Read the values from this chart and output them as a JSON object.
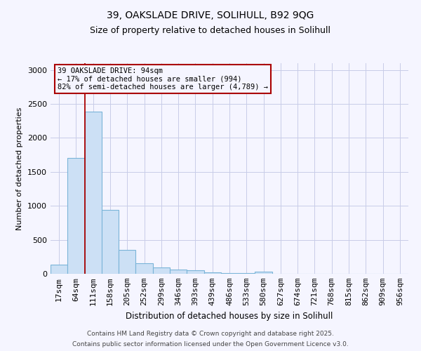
{
  "title_line1": "39, OAKSLADE DRIVE, SOLIHULL, B92 9QG",
  "title_line2": "Size of property relative to detached houses in Solihull",
  "xlabel": "Distribution of detached houses by size in Solihull",
  "ylabel": "Number of detached properties",
  "categories": [
    "17sqm",
    "64sqm",
    "111sqm",
    "158sqm",
    "205sqm",
    "252sqm",
    "299sqm",
    "346sqm",
    "393sqm",
    "439sqm",
    "486sqm",
    "533sqm",
    "580sqm",
    "627sqm",
    "674sqm",
    "721sqm",
    "768sqm",
    "815sqm",
    "862sqm",
    "909sqm",
    "956sqm"
  ],
  "values": [
    130,
    1700,
    2390,
    940,
    350,
    160,
    95,
    65,
    50,
    25,
    15,
    10,
    30,
    5,
    5,
    3,
    3,
    3,
    2,
    2,
    2
  ],
  "bar_color": "#cce0f5",
  "bar_edge_color": "#7ab4d8",
  "red_line_color": "#aa0000",
  "annotation_line1": "39 OAKSLADE DRIVE: 94sqm",
  "annotation_line2": "← 17% of detached houses are smaller (994)",
  "annotation_line3": "82% of semi-detached houses are larger (4,789) →",
  "ylim": [
    0,
    3100
  ],
  "yticks": [
    0,
    500,
    1000,
    1500,
    2000,
    2500,
    3000
  ],
  "footer_line1": "Contains HM Land Registry data © Crown copyright and database right 2025.",
  "footer_line2": "Contains public sector information licensed under the Open Government Licence v3.0.",
  "bg_color": "#f5f5ff",
  "grid_color": "#c8cce8"
}
